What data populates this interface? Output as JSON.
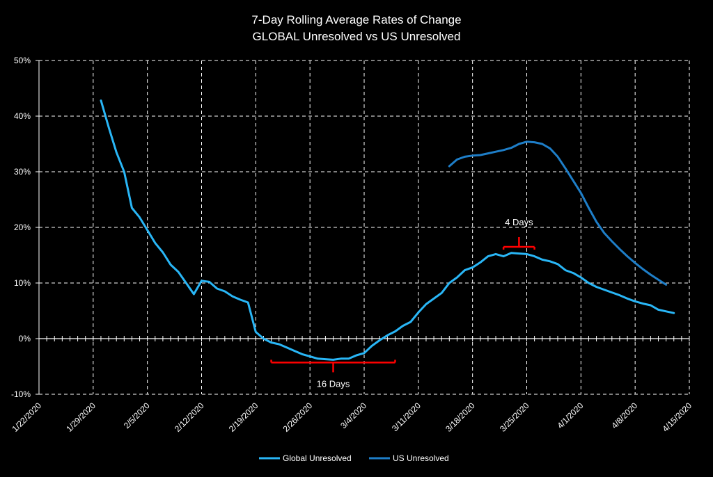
{
  "chart_data": {
    "type": "line",
    "title": [
      "7-Day Rolling Average Rates of Change",
      "GLOBAL Unresolved vs US Unresolved"
    ],
    "xlabel": "",
    "ylabel": "",
    "x_axis": {
      "type": "date",
      "start": "1/22/2020",
      "end": "4/15/2020",
      "tick_labels": [
        "1/22/2020",
        "1/29/2020",
        "2/5/2020",
        "2/12/2020",
        "2/19/2020",
        "2/26/2020",
        "3/4/2020",
        "3/11/2020",
        "3/18/2020",
        "3/25/2020",
        "4/1/2020",
        "4/8/2020",
        "4/15/2020"
      ],
      "minor_ticks": "daily"
    },
    "y_axis": {
      "min": -10,
      "max": 50,
      "tick_labels": [
        "-10%",
        "0%",
        "10%",
        "20%",
        "30%",
        "40%",
        "50%"
      ]
    },
    "grid": "vertical and horizontal dashed",
    "legend": "bottom",
    "series": [
      {
        "name": "Global Unresolved",
        "color": "#29b6f6",
        "points": [
          [
            "1/30/2020",
            42.8
          ],
          [
            "1/31/2020",
            38.0
          ],
          [
            "2/1/2020",
            33.5
          ],
          [
            "2/2/2020",
            30.0
          ],
          [
            "2/3/2020",
            23.5
          ],
          [
            "2/4/2020",
            21.8
          ],
          [
            "2/5/2020",
            19.5
          ],
          [
            "2/6/2020",
            17.2
          ],
          [
            "2/7/2020",
            15.5
          ],
          [
            "2/8/2020",
            13.3
          ],
          [
            "2/9/2020",
            12.0
          ],
          [
            "2/10/2020",
            10.0
          ],
          [
            "2/11/2020",
            8.0
          ],
          [
            "2/12/2020",
            10.4
          ],
          [
            "2/13/2020",
            10.2
          ],
          [
            "2/14/2020",
            9.0
          ],
          [
            "2/15/2020",
            8.5
          ],
          [
            "2/16/2020",
            7.6
          ],
          [
            "2/17/2020",
            7.0
          ],
          [
            "2/18/2020",
            6.5
          ],
          [
            "2/19/2020",
            1.2
          ],
          [
            "2/20/2020",
            0.0
          ],
          [
            "2/21/2020",
            -0.7
          ],
          [
            "2/22/2020",
            -1.0
          ],
          [
            "2/23/2020",
            -1.6
          ],
          [
            "2/24/2020",
            -2.2
          ],
          [
            "2/25/2020",
            -2.8
          ],
          [
            "2/26/2020",
            -3.2
          ],
          [
            "2/27/2020",
            -3.6
          ],
          [
            "2/28/2020",
            -3.7
          ],
          [
            "2/29/2020",
            -3.8
          ],
          [
            "3/1/2020",
            -3.6
          ],
          [
            "3/2/2020",
            -3.6
          ],
          [
            "3/3/2020",
            -3.0
          ],
          [
            "3/4/2020",
            -2.6
          ],
          [
            "3/5/2020",
            -1.3
          ],
          [
            "3/6/2020",
            -0.3
          ],
          [
            "3/7/2020",
            0.6
          ],
          [
            "3/8/2020",
            1.3
          ],
          [
            "3/9/2020",
            2.3
          ],
          [
            "3/10/2020",
            3.0
          ],
          [
            "3/11/2020",
            4.7
          ],
          [
            "3/12/2020",
            6.2
          ],
          [
            "3/13/2020",
            7.2
          ],
          [
            "3/14/2020",
            8.2
          ],
          [
            "3/15/2020",
            10.0
          ],
          [
            "3/16/2020",
            11.0
          ],
          [
            "3/17/2020",
            12.3
          ],
          [
            "3/18/2020",
            12.8
          ],
          [
            "3/19/2020",
            13.7
          ],
          [
            "3/20/2020",
            14.8
          ],
          [
            "3/21/2020",
            15.2
          ],
          [
            "3/22/2020",
            14.8
          ],
          [
            "3/23/2020",
            15.4
          ],
          [
            "3/24/2020",
            15.3
          ],
          [
            "3/25/2020",
            15.2
          ],
          [
            "3/26/2020",
            14.8
          ],
          [
            "3/27/2020",
            14.2
          ],
          [
            "3/28/2020",
            13.9
          ],
          [
            "3/29/2020",
            13.4
          ],
          [
            "3/30/2020",
            12.3
          ],
          [
            "3/31/2020",
            11.8
          ],
          [
            "4/1/2020",
            11.0
          ],
          [
            "4/2/2020",
            10.0
          ],
          [
            "4/3/2020",
            9.3
          ],
          [
            "4/4/2020",
            8.8
          ],
          [
            "4/5/2020",
            8.3
          ],
          [
            "4/6/2020",
            7.8
          ],
          [
            "4/7/2020",
            7.2
          ],
          [
            "4/8/2020",
            6.7
          ],
          [
            "4/9/2020",
            6.3
          ],
          [
            "4/10/2020",
            6.0
          ],
          [
            "4/11/2020",
            5.2
          ],
          [
            "4/12/2020",
            4.9
          ],
          [
            "4/13/2020",
            4.6
          ]
        ]
      },
      {
        "name": "US Unresolved",
        "color": "#1e7ec8",
        "points": [
          [
            "3/15/2020",
            31.0
          ],
          [
            "3/16/2020",
            32.2
          ],
          [
            "3/17/2020",
            32.7
          ],
          [
            "3/18/2020",
            32.9
          ],
          [
            "3/19/2020",
            33.0
          ],
          [
            "3/20/2020",
            33.3
          ],
          [
            "3/21/2020",
            33.6
          ],
          [
            "3/22/2020",
            33.9
          ],
          [
            "3/23/2020",
            34.3
          ],
          [
            "3/24/2020",
            35.0
          ],
          [
            "3/25/2020",
            35.4
          ],
          [
            "3/26/2020",
            35.3
          ],
          [
            "3/27/2020",
            35.0
          ],
          [
            "3/28/2020",
            34.2
          ],
          [
            "3/29/2020",
            32.7
          ],
          [
            "3/30/2020",
            30.6
          ],
          [
            "3/31/2020",
            28.4
          ],
          [
            "4/1/2020",
            26.2
          ],
          [
            "4/2/2020",
            23.5
          ],
          [
            "4/3/2020",
            21.0
          ],
          [
            "4/4/2020",
            19.0
          ],
          [
            "4/5/2020",
            17.5
          ],
          [
            "4/6/2020",
            16.1
          ],
          [
            "4/7/2020",
            14.8
          ],
          [
            "4/8/2020",
            13.6
          ],
          [
            "4/9/2020",
            12.5
          ],
          [
            "4/10/2020",
            11.5
          ],
          [
            "4/11/2020",
            10.6
          ],
          [
            "4/12/2020",
            9.7
          ]
        ]
      }
    ],
    "annotations": [
      {
        "type": "bracket",
        "text": "16 Days",
        "color": "#ff0000",
        "x_start": "2/21/2020",
        "x_end": "3/8/2020",
        "y": -4.3,
        "label_position": "below"
      },
      {
        "type": "bracket",
        "text": "4 Days",
        "color": "#ff0000",
        "x_start": "3/22/2020",
        "x_end": "3/26/2020",
        "y": 16.5,
        "label_position": "above"
      }
    ]
  }
}
